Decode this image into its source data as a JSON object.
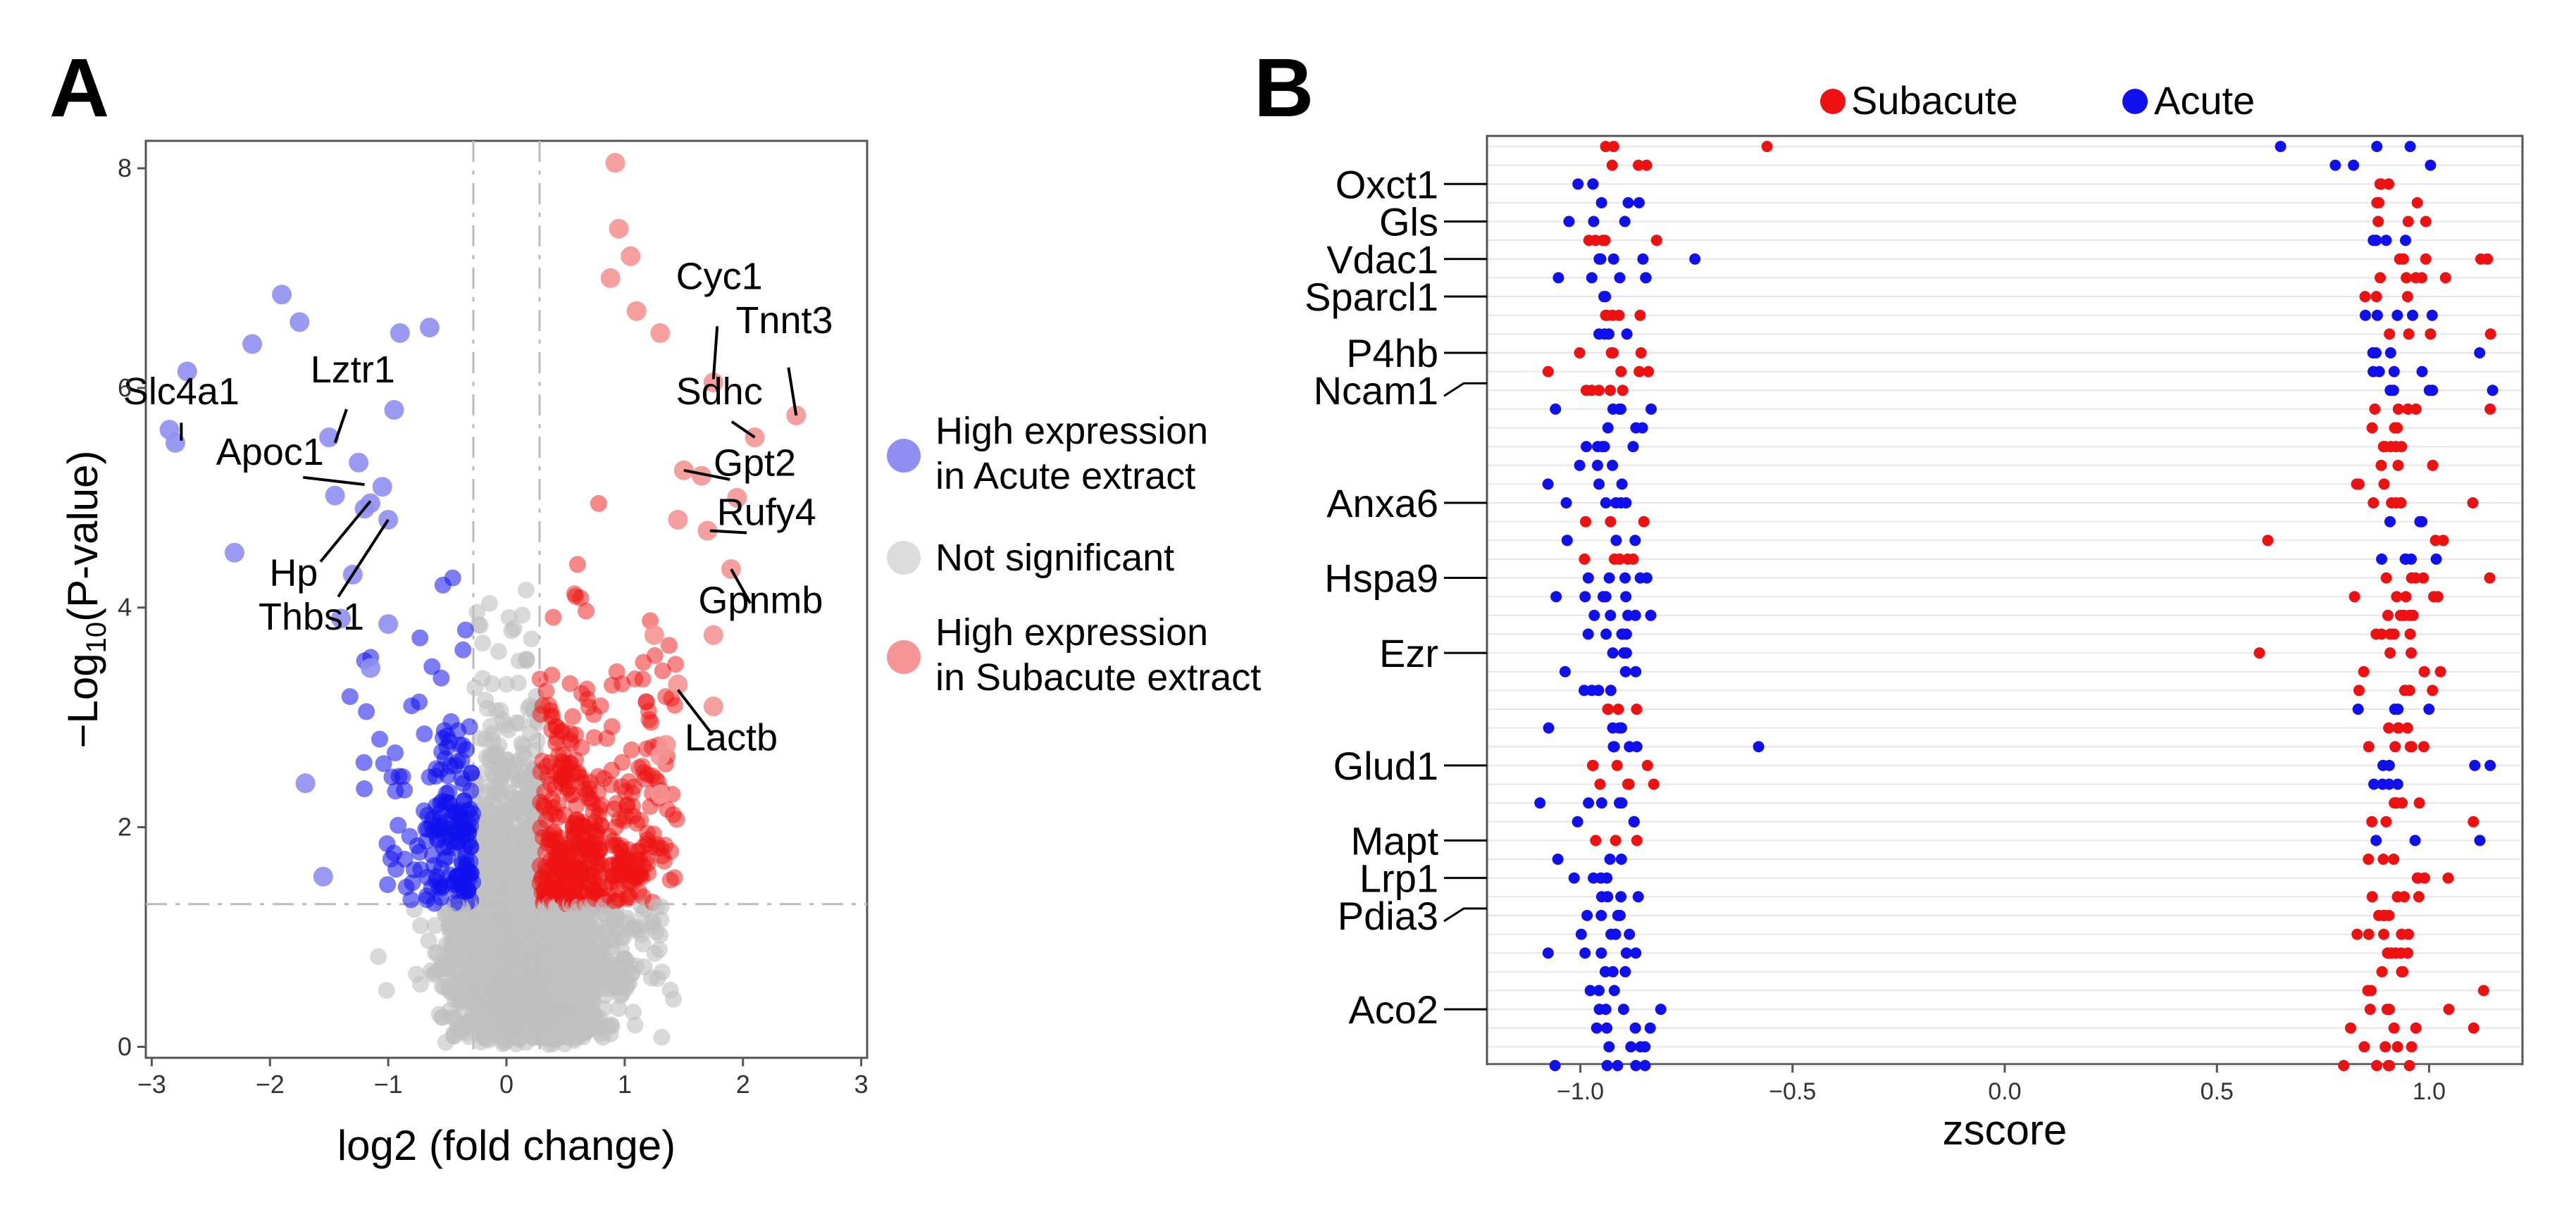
{
  "panel_labels": {
    "a": "A",
    "b": "B"
  },
  "colors": {
    "acute": "#1010ee",
    "subacute": "#ee1111",
    "acute_light": "#8f8ff2",
    "subacute_light": "#f59595",
    "not_significant": "#c0c0c0",
    "axis": "#555555",
    "grid": "#e6e6e6",
    "guide": "#bbbbbb"
  },
  "legend_a": {
    "acute_line1": "High expression",
    "acute_line2": "in Acute extract",
    "ns": "Not significant",
    "subacute_line1": "High expression",
    "subacute_line2": "in Subacute extract"
  },
  "legend_b": {
    "subacute": "Subacute",
    "acute": "Acute"
  },
  "chart_data": [
    {
      "id": "A",
      "type": "scatter",
      "title": "",
      "xlabel": "log2 (fold change)",
      "ylabel_prefix": "−Log",
      "ylabel_sub": "10",
      "ylabel_suffix": "(P-value)",
      "xlim": [
        -3.05,
        3.05
      ],
      "ylim": [
        -0.1,
        8.25
      ],
      "xticks": [
        -3,
        -2,
        -1,
        0,
        1,
        2,
        3
      ],
      "yticks": [
        0,
        2,
        4,
        6,
        8
      ],
      "thresholds": {
        "fold_change": [
          -0.28,
          0.28
        ],
        "pvalue": 1.3
      },
      "series_highlight_acute": [
        [
          -2.8,
          5.5
        ],
        [
          -2.85,
          5.62
        ],
        [
          -2.7,
          6.15
        ],
        [
          -2.3,
          4.5
        ],
        [
          -2.15,
          6.4
        ],
        [
          -1.9,
          6.85
        ],
        [
          -1.75,
          6.6
        ],
        [
          -1.7,
          2.4
        ],
        [
          -1.55,
          1.55
        ],
        [
          -1.5,
          5.55
        ],
        [
          -1.45,
          5.02
        ],
        [
          -1.4,
          3.9
        ],
        [
          -1.3,
          4.3
        ],
        [
          -1.25,
          5.32
        ],
        [
          -1.2,
          4.9
        ],
        [
          -1.15,
          4.95
        ],
        [
          -1.15,
          3.45
        ],
        [
          -1.0,
          3.85
        ],
        [
          -1.0,
          4.8
        ],
        [
          -1.05,
          5.1
        ],
        [
          -0.9,
          6.5
        ],
        [
          -0.95,
          5.8
        ],
        [
          -0.65,
          6.55
        ]
      ],
      "series_highlight_subacute": [
        [
          0.92,
          8.05
        ],
        [
          0.95,
          7.45
        ],
        [
          1.05,
          7.2
        ],
        [
          0.88,
          7.0
        ],
        [
          1.1,
          6.7
        ],
        [
          1.3,
          6.5
        ],
        [
          1.75,
          6.05
        ],
        [
          2.1,
          5.55
        ],
        [
          2.45,
          5.75
        ],
        [
          1.5,
          5.25
        ],
        [
          1.65,
          5.2
        ],
        [
          1.95,
          5.0
        ],
        [
          1.45,
          4.8
        ],
        [
          1.7,
          4.7
        ],
        [
          1.9,
          4.35
        ],
        [
          1.75,
          3.75
        ],
        [
          1.25,
          3.75
        ],
        [
          1.45,
          3.3
        ],
        [
          1.75,
          3.1
        ],
        [
          1.3,
          2.65
        ],
        [
          1.35,
          2.75
        ],
        [
          1.3,
          2.3
        ]
      ],
      "labels": [
        {
          "text": "Slc4a1",
          "x": -2.75,
          "y": 5.85,
          "px": -2.75,
          "py": 5.52
        },
        {
          "text": "Apoc1",
          "x": -2.0,
          "y": 5.3,
          "px": -1.2,
          "py": 5.12
        },
        {
          "text": "Lztr1",
          "x": -1.3,
          "y": 6.05,
          "px": -1.45,
          "py": 5.5
        },
        {
          "text": "Hp",
          "x": -1.8,
          "y": 4.2,
          "px": -1.15,
          "py": 4.97
        },
        {
          "text": "Thbs1",
          "x": -1.65,
          "y": 3.8,
          "px": -1.0,
          "py": 4.8
        },
        {
          "text": "Cyc1",
          "x": 1.8,
          "y": 6.9,
          "px": 1.75,
          "py": 6.08
        },
        {
          "text": "Tnnt3",
          "x": 2.35,
          "y": 6.5,
          "px": 2.45,
          "py": 5.75
        },
        {
          "text": "Sdhc",
          "x": 1.8,
          "y": 5.85,
          "px": 2.1,
          "py": 5.55
        },
        {
          "text": "Gpt2",
          "x": 2.1,
          "y": 5.2,
          "px": 1.5,
          "py": 5.25
        },
        {
          "text": "Rufy4",
          "x": 2.2,
          "y": 4.75,
          "px": 1.72,
          "py": 4.7
        },
        {
          "text": "Gpnmb",
          "x": 2.15,
          "y": 3.95,
          "px": 1.9,
          "py": 4.35
        },
        {
          "text": "Lactb",
          "x": 1.9,
          "y": 2.7,
          "px": 1.45,
          "py": 3.25
        }
      ]
    },
    {
      "id": "B",
      "type": "scatter",
      "title": "",
      "xlabel": "zscore",
      "xlim": [
        -1.22,
        1.22
      ],
      "xticks": [
        -1.0,
        -0.5,
        0.0,
        0.5,
        1.0
      ],
      "xtick_labels": [
        "−1.0",
        "−0.5",
        "0.0",
        "0.5",
        "1.0"
      ],
      "n_rows": 50,
      "gene_labels": [
        {
          "text": "Oxct1",
          "row": 2
        },
        {
          "text": "Gls",
          "row": 4
        },
        {
          "text": "Vdac1",
          "row": 6
        },
        {
          "text": "Sparcl1",
          "row": 8
        },
        {
          "text": "P4hb",
          "row": 11
        },
        {
          "text": "Ncam1",
          "row": 13
        },
        {
          "text": "Anxa6",
          "row": 19
        },
        {
          "text": "Hspa9",
          "row": 23
        },
        {
          "text": "Ezr",
          "row": 27
        },
        {
          "text": "Glud1",
          "row": 33
        },
        {
          "text": "Mapt",
          "row": 37
        },
        {
          "text": "Lrp1",
          "row": 39
        },
        {
          "text": "Pdia3",
          "row": 41
        },
        {
          "text": "Aco2",
          "row": 46
        }
      ]
    }
  ]
}
